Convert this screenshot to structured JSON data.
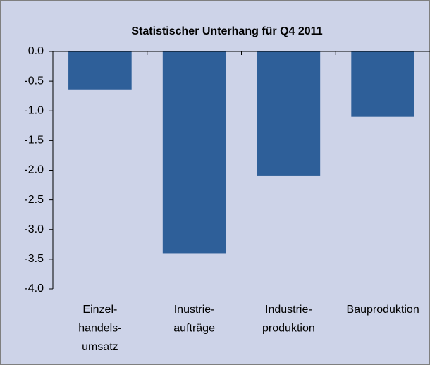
{
  "chart_data": {
    "type": "bar",
    "title": "Statistischer Unterhang für Q4 2011",
    "categories": [
      [
        "Einzel-",
        "handels-",
        "umsatz"
      ],
      [
        "Inustrie-",
        "aufträge"
      ],
      [
        "Industrie-",
        "produktion"
      ],
      [
        "Bauproduktion"
      ]
    ],
    "values": [
      -0.65,
      -3.4,
      -2.1,
      -1.1
    ],
    "color": "#2e5f99",
    "ylim": [
      -4,
      0
    ],
    "yticks": [
      {
        "value": 0,
        "label": "0.0"
      },
      -0.5,
      {
        "value": -1,
        "label": "-1.0"
      },
      -1.5,
      {
        "value": -2,
        "label": "-2.0"
      },
      -2.5,
      {
        "value": -3,
        "label": "-3.0"
      },
      -3.5,
      {
        "value": -4,
        "label": "-4.0"
      }
    ],
    "grid": false
  }
}
